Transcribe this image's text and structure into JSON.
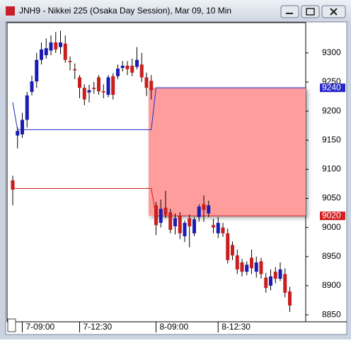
{
  "window_title": "JNH9 - Nikkei 225 (Osaka Day Session), Mar 09, 10 Min",
  "chart_data": {
    "type": "candlestick",
    "categories": [
      null,
      null,
      "7-09:00",
      null,
      null,
      null,
      null,
      null,
      null,
      null,
      null,
      null,
      null,
      null,
      "7-12:30",
      null,
      null,
      null,
      null,
      null,
      null,
      null,
      null,
      null,
      null,
      null,
      null,
      null,
      null,
      null,
      "8-09:00",
      null,
      null,
      null,
      null,
      null,
      null,
      null,
      null,
      null,
      null,
      null,
      null,
      "8-12:30",
      null,
      null,
      null,
      null,
      null,
      null,
      null,
      null,
      null,
      null,
      null,
      null,
      null,
      null,
      null
    ],
    "open": [
      9081,
      9158,
      9160,
      9185,
      9233,
      9251,
      9288,
      9296,
      9304,
      9318,
      9310,
      9316,
      9286,
      9272,
      9258,
      9240,
      9232,
      9240,
      9258,
      9234,
      9228,
      9260,
      9260,
      9274,
      9278,
      9278,
      9276,
      9280,
      9258,
      9252,
      9038,
      9008,
      9034,
      9026,
      9002,
      9020,
      8985,
      9016,
      8990,
      9018,
      9040,
      9024,
      9004,
      8990,
      9000,
      8990,
      8970,
      8952,
      8940,
      8924,
      8948,
      8924,
      8942,
      8914,
      8900,
      8924,
      8912,
      8920,
      8890
    ],
    "high": [
      9089,
      9172,
      9197,
      9233,
      9261,
      9300,
      9318,
      9325,
      9330,
      9336,
      9338,
      9330,
      9294,
      9282,
      9262,
      9246,
      9245,
      9250,
      9262,
      9246,
      9262,
      9265,
      9280,
      9286,
      9286,
      9290,
      9310,
      9300,
      9266,
      9262,
      9044,
      9048,
      9063,
      9032,
      9024,
      9026,
      9012,
      9022,
      9018,
      9040,
      9055,
      9046,
      9015,
      9018,
      9008,
      8998,
      8976,
      8962,
      8946,
      8942,
      8962,
      8950,
      8948,
      8922,
      8928,
      8932,
      8940,
      8930,
      8898
    ],
    "low": [
      9038,
      9136,
      9154,
      9172,
      9227,
      9240,
      9280,
      9290,
      9296,
      9300,
      9298,
      9283,
      9270,
      9255,
      9222,
      9210,
      9215,
      9230,
      9228,
      9222,
      9224,
      9220,
      9255,
      9268,
      9262,
      9260,
      9272,
      9250,
      9226,
      9220,
      8987,
      9000,
      9016,
      8990,
      8988,
      8980,
      8975,
      8966,
      8985,
      9010,
      9010,
      9018,
      8990,
      8982,
      8984,
      8938,
      8944,
      8920,
      8916,
      8918,
      8920,
      8914,
      8912,
      8888,
      8892,
      8904,
      8908,
      8880,
      8855
    ],
    "close": [
      9065,
      9166,
      9185,
      9227,
      9251,
      9288,
      9306,
      9308,
      9318,
      9306,
      9318,
      9288,
      9284,
      9270,
      9240,
      9220,
      9236,
      9238,
      9234,
      9232,
      9258,
      9228,
      9273,
      9278,
      9272,
      9266,
      9288,
      9258,
      9240,
      9236,
      9004,
      9032,
      9022,
      8996,
      9016,
      8990,
      9008,
      9002,
      9014,
      9036,
      9030,
      9038,
      9000,
      9008,
      8990,
      8944,
      8952,
      8928,
      8924,
      8936,
      8930,
      8940,
      8920,
      8896,
      8916,
      8912,
      8928,
      8888,
      8866
    ],
    "up_color": "#1c1cb4",
    "down_color": "#c81e1e",
    "lines": [
      {
        "color": "#2828c8",
        "values": [
          9215,
          9168,
          9168,
          9168,
          9168,
          9168,
          9168,
          9168,
          9168,
          9168,
          9168,
          9168,
          9168,
          9168,
          9168,
          9168,
          9168,
          9168,
          9168,
          9168,
          9168,
          9168,
          9168,
          9168,
          9168,
          9168,
          9168,
          9168,
          9168,
          9168,
          9240,
          9240,
          9240,
          9240,
          9240,
          9240,
          9240,
          9240,
          9240,
          9240,
          9240,
          9240,
          9240,
          9240,
          9240,
          9240,
          9240,
          9240,
          9240,
          9240,
          9240,
          9240,
          9240,
          9240,
          9240,
          9240,
          9240,
          9240,
          9240
        ]
      },
      {
        "color": "#d02020",
        "values": [
          9067,
          9067,
          9067,
          9067,
          9067,
          9067,
          9067,
          9067,
          9067,
          9067,
          9067,
          9067,
          9067,
          9067,
          9067,
          9067,
          9067,
          9067,
          9067,
          9067,
          9067,
          9067,
          9067,
          9067,
          9067,
          9067,
          9067,
          9067,
          9067,
          9067,
          9020,
          9020,
          9020,
          9020,
          9020,
          9020,
          9020,
          9020,
          9020,
          9020,
          9020,
          9020,
          9020,
          9020,
          9020,
          9020,
          9020,
          9020,
          9020,
          9020,
          9020,
          9020,
          9020,
          9020,
          9020,
          9020,
          9020,
          9020,
          9020
        ]
      }
    ],
    "zone_color": "#ff9c9c",
    "ylim": [
      8838,
      9352
    ],
    "yticks": [
      8850,
      8900,
      8950,
      9000,
      9050,
      9100,
      9150,
      9200,
      9250,
      9300
    ],
    "grid": false
  }
}
